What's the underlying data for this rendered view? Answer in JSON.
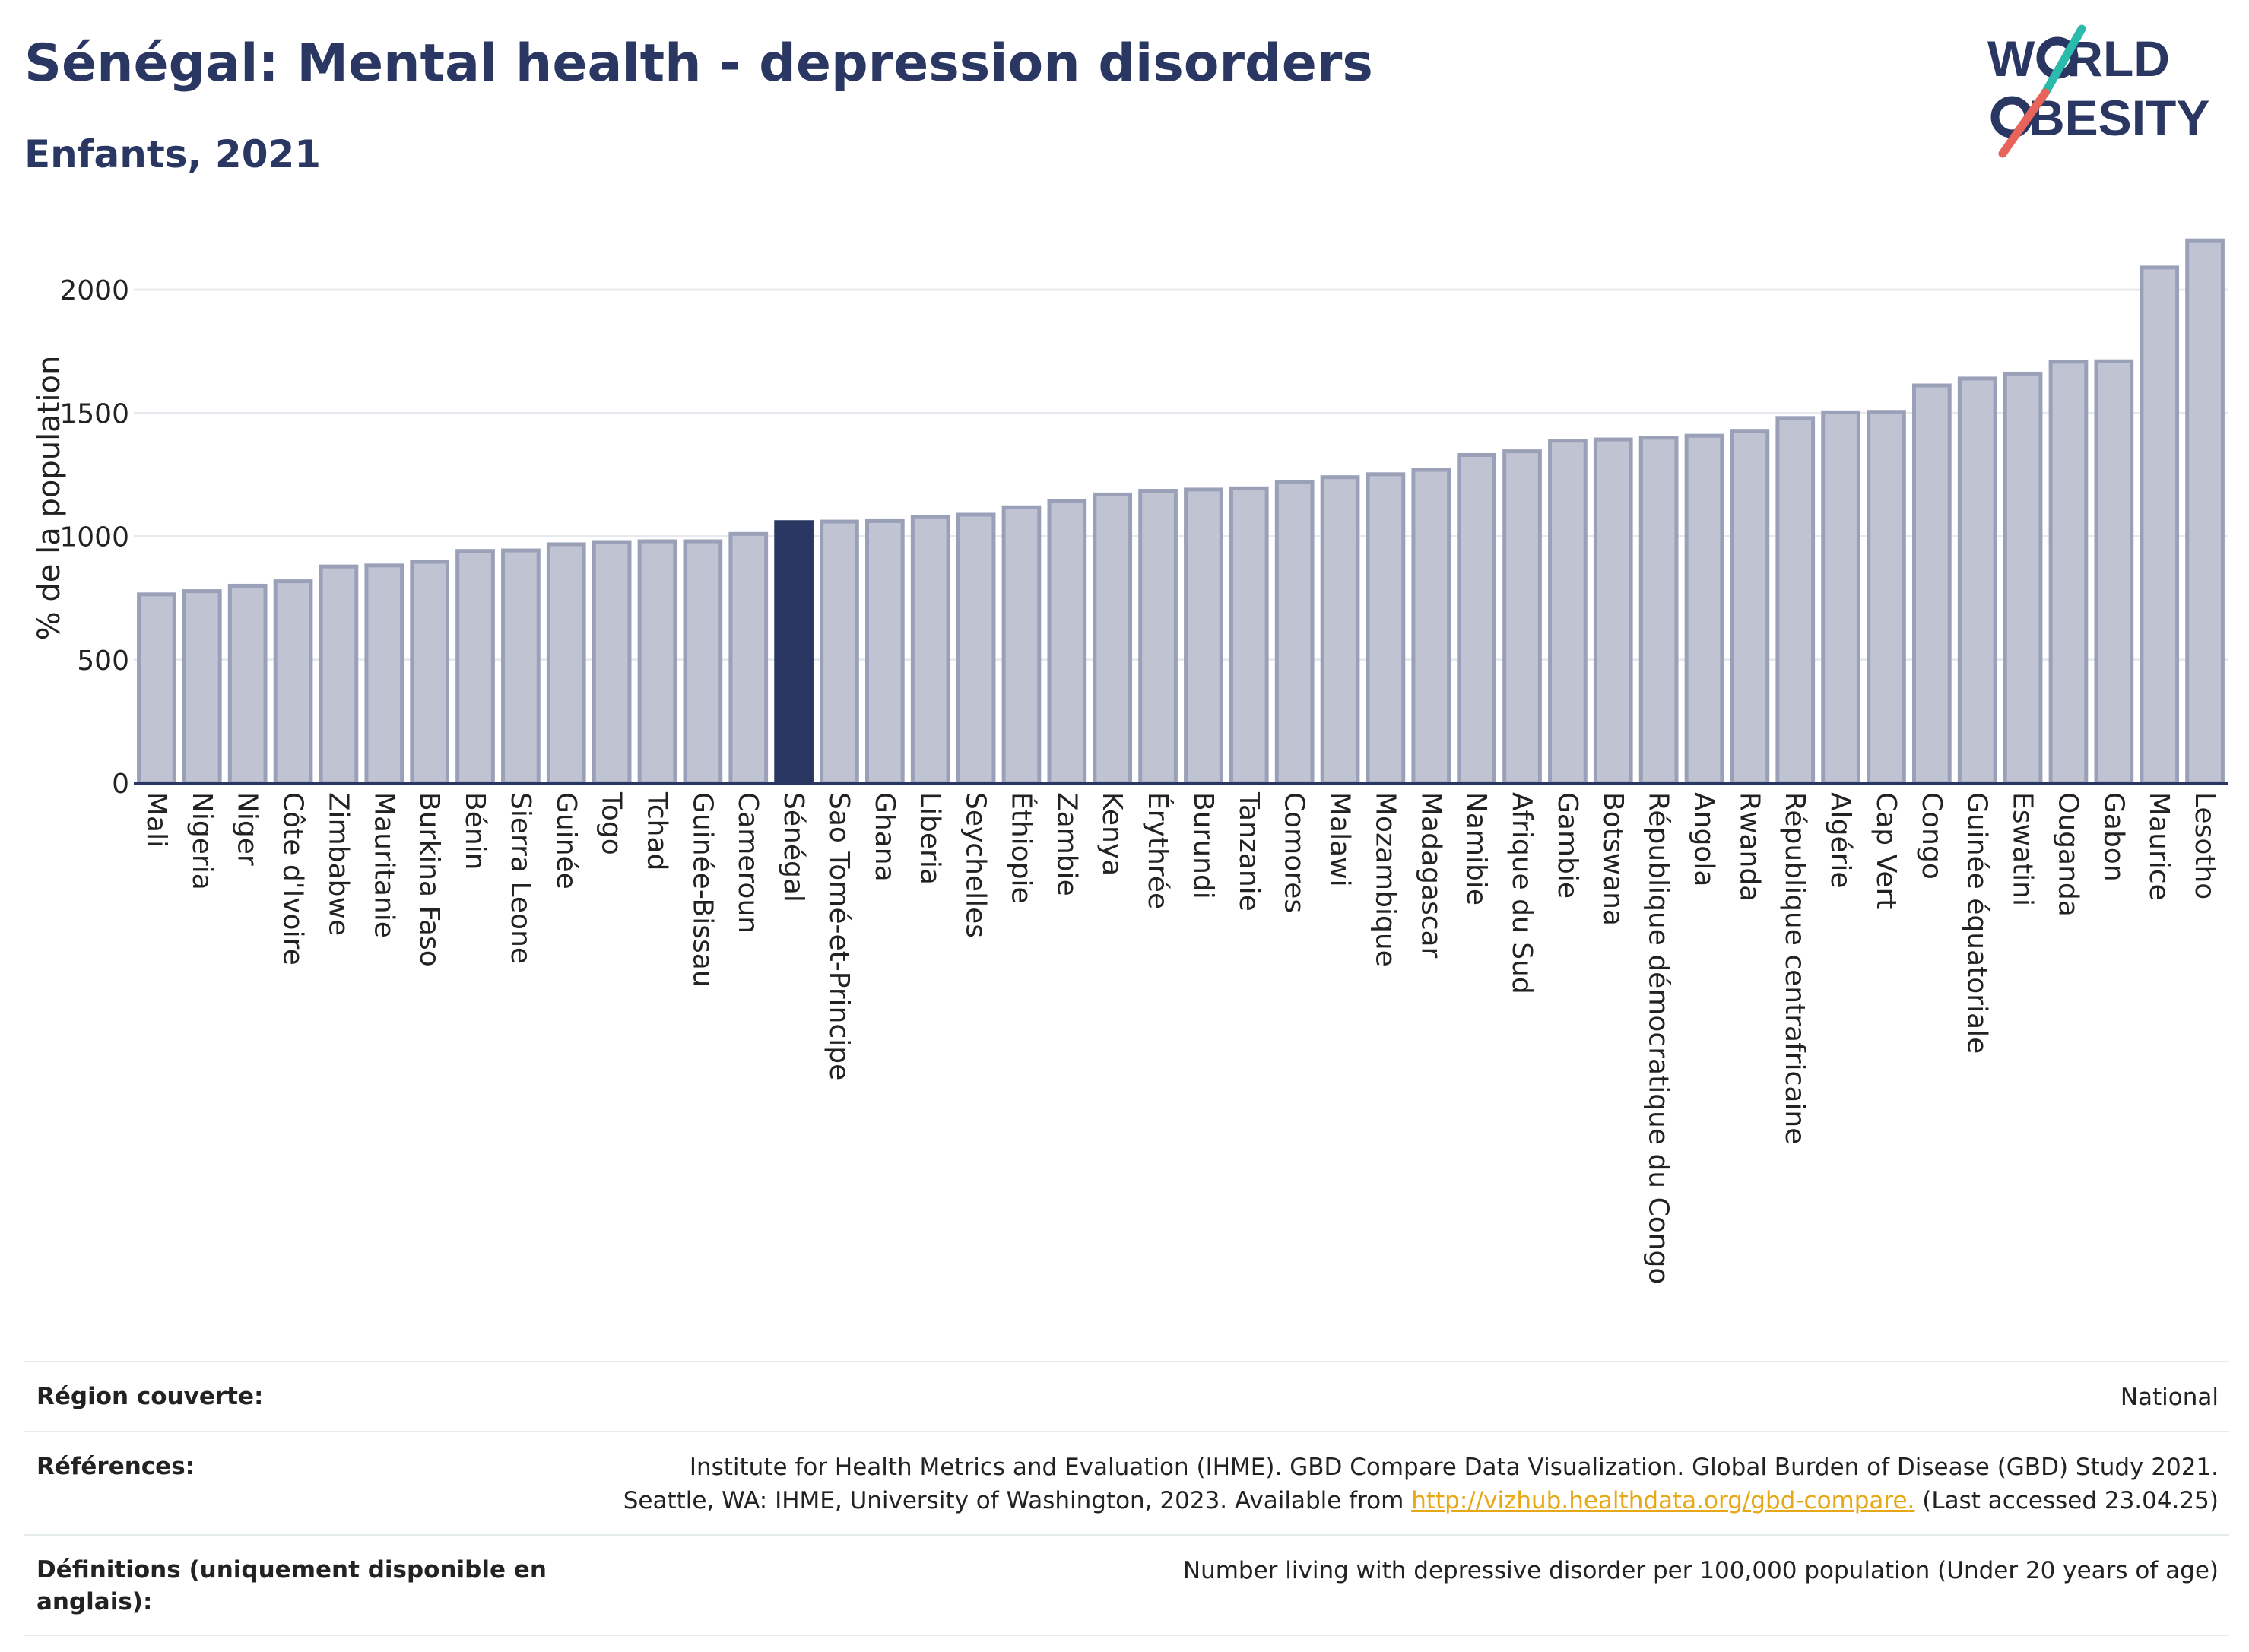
{
  "header": {
    "title": "Sénégal: Mental health - depression disorders",
    "subtitle": "Enfants, 2021"
  },
  "logo": {
    "line1": "W",
    "line1_rest": "RLD",
    "line2": "BESITY",
    "slash_colors": [
      "#2bbbad",
      "#e8645a"
    ],
    "text_color": "#2a3762"
  },
  "colors": {
    "bar": "#bfc3d2",
    "bar_stroke": "#9aa0b8",
    "highlight": "#2a3762",
    "grid": "#e6e9ee",
    "axis": "#2a3762"
  },
  "chart_data": {
    "type": "bar",
    "ylabel": "% de la population",
    "ylim": [
      0,
      2250
    ],
    "yticks": [
      0,
      500,
      1000,
      1500,
      2000
    ],
    "highlight": "Sénégal",
    "categories": [
      "Mali",
      "Nigeria",
      "Niger",
      "Côte d'Ivoire",
      "Zimbabwe",
      "Mauritanie",
      "Burkina Faso",
      "Bénin",
      "Sierra Leone",
      "Guinée",
      "Togo",
      "Tchad",
      "Guinée-Bissau",
      "Cameroun",
      "Sénégal",
      "Sao Tomé-et-Principe",
      "Ghana",
      "Liberia",
      "Seychelles",
      "Éthiopie",
      "Zambie",
      "Kenya",
      "Érythrée",
      "Burundi",
      "Tanzanie",
      "Comores",
      "Malawi",
      "Mozambique",
      "Madagascar",
      "Namibie",
      "Afrique du Sud",
      "Gambie",
      "Botswana",
      "République démocratique du Congo",
      "Angola",
      "Rwanda",
      "République centrafricaine",
      "Algérie",
      "Cap Vert",
      "Congo",
      "Guinée équatoriale",
      "Eswatini",
      "Ouganda",
      "Gabon",
      "Maurice",
      "Lesotho"
    ],
    "values": [
      765,
      778,
      800,
      818,
      878,
      882,
      897,
      941,
      943,
      968,
      977,
      980,
      980,
      1010,
      1058,
      1060,
      1062,
      1078,
      1088,
      1118,
      1145,
      1170,
      1185,
      1190,
      1195,
      1222,
      1240,
      1252,
      1270,
      1330,
      1345,
      1388,
      1393,
      1400,
      1408,
      1428,
      1480,
      1503,
      1505,
      1612,
      1640,
      1660,
      1708,
      1710,
      2090,
      2200
    ]
  },
  "footer": {
    "rows": [
      {
        "label": "Région couverte:",
        "value_lines": [
          "National"
        ]
      },
      {
        "label": "Références:",
        "value_lines": [
          "Institute for Health Metrics and Evaluation (IHME). GBD Compare Data Visualization. Global Burden of Disease (GBD) Study 2021."
        ],
        "line2_prefix": "Seattle, WA: IHME, University of Washington, 2023. Available from ",
        "link": "http://vizhub.healthdata.org/gbd-compare.",
        "line2_suffix": " (Last accessed 23.04.25)"
      },
      {
        "label": "Définitions (uniquement disponible en anglais):",
        "value_lines": [
          "Number living with depressive disorder per 100,000 population (Under 20 years of age)"
        ]
      }
    ]
  }
}
